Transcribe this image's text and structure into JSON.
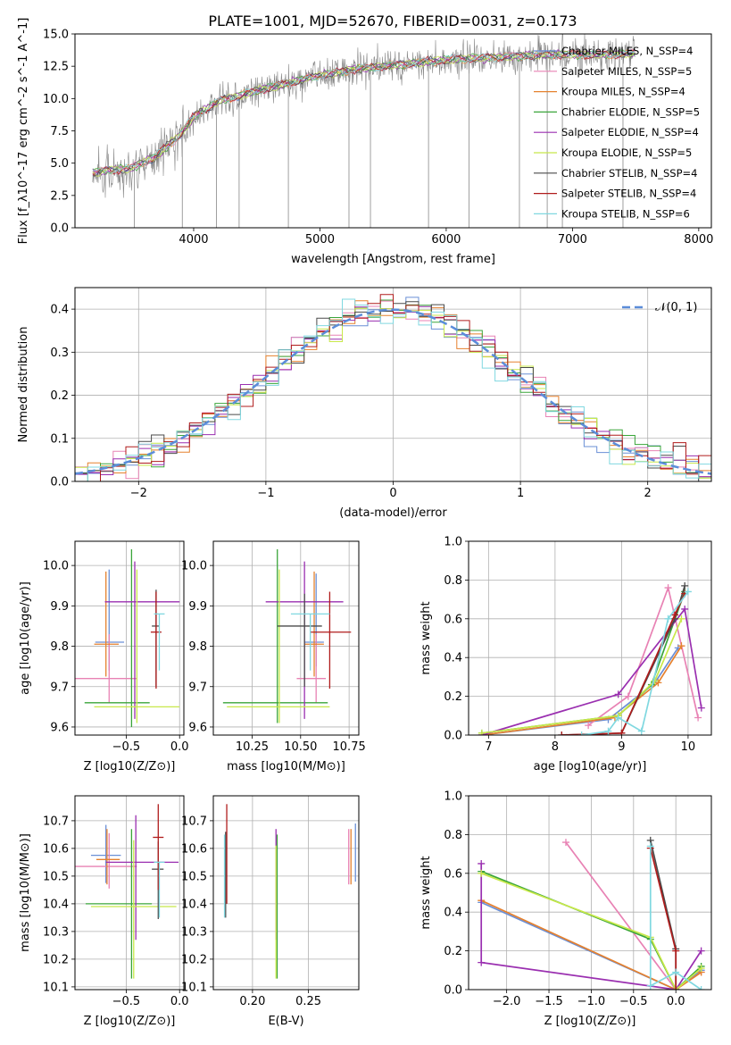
{
  "figure": {
    "title": "PLATE=1001, MJD=52670, FIBERID=0031, z=0.173"
  },
  "models": [
    {
      "name": "Chabrier MILES, N$_{SSP}$=4",
      "color": "#6a8fd6"
    },
    {
      "name": "Salpeter MILES, N$_{SSP}$=5",
      "color": "#e882b4"
    },
    {
      "name": "Kroupa MILES, N$_{SSP}$=4",
      "color": "#e5812e"
    },
    {
      "name": "Chabrier ELODIE, N$_{SSP}$=5",
      "color": "#3aa53a"
    },
    {
      "name": "Salpeter ELODIE, N$_{SSP}$=4",
      "color": "#9a2fb0"
    },
    {
      "name": "Kroupa ELODIE, N$_{SSP}$=5",
      "color": "#c8e84a"
    },
    {
      "name": "Chabrier STELIB, N$_{SSP}$=4",
      "color": "#4a4a4a"
    },
    {
      "name": "Salpeter STELIB, N$_{SSP}$=4",
      "color": "#b01c1c"
    },
    {
      "name": "Kroupa STELIB, N$_{SSP}$=6",
      "color": "#80d8e0"
    }
  ],
  "chart_data": [
    {
      "id": "spectrum",
      "type": "line",
      "xlabel": "wavelength [Angstrom, rest frame]",
      "ylabel": "Flux [f_λ10^-17 erg cm^-2 s^-1 A^-1]",
      "xlim": [
        3060,
        8100
      ],
      "ylim": [
        0,
        15
      ],
      "xticks": [
        4000,
        5000,
        6000,
        7000,
        8000
      ],
      "yticks": [
        0.0,
        2.5,
        5.0,
        7.5,
        10.0,
        12.5,
        15.0
      ],
      "ytick_labels": [
        "0.0",
        "2.5",
        "5.0",
        "7.5",
        "10.0",
        "12.5",
        "15.0"
      ],
      "grid": false,
      "legend": "right",
      "data_color": "#888888",
      "continuum": [
        [
          3200,
          4.3
        ],
        [
          3500,
          4.6
        ],
        [
          3700,
          5.5
        ],
        [
          3900,
          7.3
        ],
        [
          4000,
          8.6
        ],
        [
          4200,
          9.8
        ],
        [
          4500,
          10.6
        ],
        [
          4800,
          11.3
        ],
        [
          5000,
          11.8
        ],
        [
          5300,
          12.3
        ],
        [
          5600,
          12.6
        ],
        [
          6000,
          13.0
        ],
        [
          6400,
          13.2
        ],
        [
          6800,
          13.4
        ],
        [
          7200,
          13.4
        ],
        [
          7500,
          13.5
        ]
      ],
      "x_range": [
        3200,
        7500
      ],
      "spikes": [
        3530,
        3910,
        4180,
        4360,
        4750,
        5230,
        5400,
        5860,
        6180,
        6580,
        6800,
        6920,
        7400
      ]
    },
    {
      "id": "residuals",
      "type": "histogram",
      "xlabel": "(data-model)/error",
      "ylabel": "Normed distribution",
      "xlim": [
        -2.5,
        2.5
      ],
      "ylim": [
        0,
        0.45
      ],
      "xticks": [
        -2,
        -1,
        0,
        1,
        2
      ],
      "xtick_labels": [
        "−2",
        "−1",
        "0",
        "1",
        "2"
      ],
      "yticks": [
        0.0,
        0.1,
        0.2,
        0.3,
        0.4
      ],
      "ytick_labels": [
        "0.0",
        "0.1",
        "0.2",
        "0.3",
        "0.4"
      ],
      "grid": true,
      "legend": "top-right",
      "bins": 50,
      "reference_label": "𝒩(0, 1)",
      "reference_color": "#5b8dd9"
    },
    {
      "id": "age_vs_Z",
      "type": "errorbar",
      "xlabel": "Z [log10(Z/Z⊙)]",
      "ylabel": "age [log10(age/yr)]",
      "xlim": [
        -0.98,
        0.04
      ],
      "ylim": [
        9.58,
        10.06
      ],
      "xticks": [
        -0.5,
        0.0
      ],
      "xtick_labels": [
        "−0.5",
        "0.0"
      ],
      "yticks": [
        9.6,
        9.7,
        9.8,
        9.9,
        10.0
      ],
      "ytick_labels": [
        "9.6",
        "9.7",
        "9.8",
        "9.9",
        "10.0"
      ],
      "grid": true,
      "points": [
        {
          "x": -0.66,
          "xerr": [
            0.13,
            0.14
          ],
          "y": 9.81,
          "yerr": [
            0.07,
            0.18
          ]
        },
        {
          "x": -0.66,
          "xerr": [
            0.33,
            0.26
          ],
          "y": 9.72,
          "yerr": [
            0.06,
            0.11
          ]
        },
        {
          "x": -0.69,
          "xerr": [
            0.11,
            0.12
          ],
          "y": 9.805,
          "yerr": [
            0.08,
            0.18
          ]
        },
        {
          "x": -0.45,
          "xerr": [
            0.44,
            0.17
          ],
          "y": 9.66,
          "yerr": [
            0.06,
            0.38
          ]
        },
        {
          "x": -0.42,
          "xerr": [
            0.28,
            0.42
          ],
          "y": 9.91,
          "yerr": [
            0.29,
            0.1
          ]
        },
        {
          "x": -0.4,
          "xerr": [
            0.4,
            0.4
          ],
          "y": 9.65,
          "yerr": [
            0.04,
            0.34
          ]
        },
        {
          "x": -0.22,
          "xerr": [
            0.04,
            0.03
          ],
          "y": 9.85,
          "yerr": [
            0.15,
            0.09
          ]
        },
        {
          "x": -0.22,
          "xerr": [
            0.05,
            0.05
          ],
          "y": 9.835,
          "yerr": [
            0.14,
            0.1
          ]
        },
        {
          "x": -0.19,
          "xerr": [
            0.05,
            0.05
          ],
          "y": 9.88,
          "yerr": [
            0.14,
            0.0
          ]
        }
      ]
    },
    {
      "id": "age_vs_mass",
      "type": "errorbar",
      "xlabel": "mass [log10(M/M⊙)]",
      "ylabel": "",
      "xlim": [
        10.05,
        10.8
      ],
      "ylim": [
        9.58,
        10.06
      ],
      "xticks": [
        10.25,
        10.5,
        10.75
      ],
      "xtick_labels": [
        "10.25",
        "10.50",
        "10.75"
      ],
      "yticks": [
        9.6,
        9.7,
        9.8,
        9.9,
        10.0
      ],
      "ytick_labels": [
        "9.6",
        "9.7",
        "9.8",
        "9.9",
        "10.0"
      ],
      "grid": true,
      "points": [
        {
          "x": 10.58,
          "xerr": [
            0.06,
            0.04
          ],
          "y": 9.81,
          "yerr": [
            0.06,
            0.17
          ]
        },
        {
          "x": 10.58,
          "xerr": [
            0.1,
            0.05
          ],
          "y": 9.72,
          "yerr": [
            0.06,
            0.11
          ]
        },
        {
          "x": 10.57,
          "xerr": [
            0.05,
            0.05
          ],
          "y": 9.805,
          "yerr": [
            0.08,
            0.18
          ]
        },
        {
          "x": 10.38,
          "xerr": [
            0.28,
            0.26
          ],
          "y": 9.66,
          "yerr": [
            0.05,
            0.38
          ]
        },
        {
          "x": 10.52,
          "xerr": [
            0.2,
            0.2
          ],
          "y": 9.91,
          "yerr": [
            0.29,
            0.1
          ]
        },
        {
          "x": 10.39,
          "xerr": [
            0.27,
            0.26
          ],
          "y": 9.65,
          "yerr": [
            0.04,
            0.34
          ]
        },
        {
          "x": 10.52,
          "xerr": [
            0.14,
            0.09
          ],
          "y": 9.85,
          "yerr": [
            0.15,
            0.08
          ]
        },
        {
          "x": 10.65,
          "xerr": [
            0.1,
            0.11
          ],
          "y": 9.835,
          "yerr": [
            0.14,
            0.1
          ]
        },
        {
          "x": 10.55,
          "xerr": [
            0.1,
            0.1
          ],
          "y": 9.88,
          "yerr": [
            0.14,
            0.0
          ]
        }
      ]
    },
    {
      "id": "weight_vs_age",
      "type": "line",
      "xlabel": "age [log10(age/yr)]",
      "ylabel": "mass weight",
      "xlim": [
        6.7,
        10.35
      ],
      "ylim": [
        0,
        1
      ],
      "xticks": [
        7,
        8,
        9,
        10
      ],
      "xtick_labels": [
        "7",
        "8",
        "9",
        "10"
      ],
      "yticks": [
        0.0,
        0.2,
        0.4,
        0.6,
        0.8,
        1.0
      ],
      "ytick_labels": [
        "0.0",
        "0.2",
        "0.4",
        "0.6",
        "0.8",
        "1.0"
      ],
      "grid": true,
      "series": [
        {
          "x": [
            6.9,
            8.8,
            9.5,
            9.85
          ],
          "y": [
            0.0,
            0.08,
            0.27,
            0.45
          ]
        },
        {
          "x": [
            8.5,
            9.1,
            9.7,
            10.15
          ],
          "y": [
            0.05,
            0.2,
            0.76,
            0.09
          ]
        },
        {
          "x": [
            6.9,
            8.9,
            9.55,
            9.9
          ],
          "y": [
            0.0,
            0.09,
            0.27,
            0.46
          ]
        },
        {
          "x": [
            6.9,
            8.95,
            9.45,
            9.95
          ],
          "y": [
            0.01,
            0.1,
            0.26,
            0.74
          ]
        },
        {
          "x": [
            6.9,
            8.95,
            9.95,
            10.2
          ],
          "y": [
            0.0,
            0.21,
            0.65,
            0.14
          ]
        },
        {
          "x": [
            6.9,
            8.95,
            9.5,
            9.9
          ],
          "y": [
            0.01,
            0.1,
            0.28,
            0.6
          ]
        },
        {
          "x": [
            8.1,
            9.0,
            9.8,
            9.95
          ],
          "y": [
            0.0,
            0.01,
            0.6,
            0.77
          ]
        },
        {
          "x": [
            8.1,
            9.0,
            9.8,
            9.95
          ],
          "y": [
            0.0,
            0.01,
            0.62,
            0.73
          ]
        },
        {
          "x": [
            8.4,
            8.8,
            8.95,
            9.3,
            9.7,
            10.0
          ],
          "y": [
            0.0,
            0.02,
            0.09,
            0.02,
            0.6,
            0.74
          ]
        }
      ]
    },
    {
      "id": "mass_vs_Z",
      "type": "errorbar",
      "xlabel": "Z [log10(Z/Z⊙)]",
      "ylabel": "mass [log10(M/M⊙)]",
      "xlim": [
        -0.98,
        0.04
      ],
      "ylim": [
        10.09,
        10.79
      ],
      "xticks": [
        -0.5,
        0.0
      ],
      "xtick_labels": [
        "−0.5",
        "0.0"
      ],
      "yticks": [
        10.1,
        10.2,
        10.3,
        10.4,
        10.5,
        10.6,
        10.7
      ],
      "ytick_labels": [
        "10.1",
        "10.2",
        "10.3",
        "10.4",
        "10.5",
        "10.6",
        "10.7"
      ],
      "grid": true,
      "points": [
        {
          "x": -0.69,
          "xerr": [
            0.14,
            0.14
          ],
          "y": 10.575,
          "yerr": [
            0.1,
            0.11
          ]
        },
        {
          "x": -0.66,
          "xerr": [
            0.33,
            0.26
          ],
          "y": 10.535,
          "yerr": [
            0.08,
            0.12
          ]
        },
        {
          "x": -0.68,
          "xerr": [
            0.1,
            0.12
          ],
          "y": 10.56,
          "yerr": [
            0.09,
            0.11
          ]
        },
        {
          "x": -0.45,
          "xerr": [
            0.43,
            0.19
          ],
          "y": 10.4,
          "yerr": [
            0.27,
            0.27
          ]
        },
        {
          "x": -0.41,
          "xerr": [
            0.28,
            0.4
          ],
          "y": 10.55,
          "yerr": [
            0.28,
            0.17
          ]
        },
        {
          "x": -0.43,
          "xerr": [
            0.4,
            0.4
          ],
          "y": 10.39,
          "yerr": [
            0.26,
            0.24
          ]
        },
        {
          "x": -0.2,
          "xerr": [
            0.06,
            0.05
          ],
          "y": 10.525,
          "yerr": [
            0.18,
            0.1
          ]
        },
        {
          "x": -0.2,
          "xerr": [
            0.05,
            0.05
          ],
          "y": 10.64,
          "yerr": [
            0.19,
            0.12
          ]
        },
        {
          "x": -0.19,
          "xerr": [
            0.05,
            0.05
          ],
          "y": 10.55,
          "yerr": [
            0.2,
            0.0
          ]
        }
      ]
    },
    {
      "id": "mass_vs_EBV",
      "type": "errorbar",
      "xlabel": "E(B-V)",
      "ylabel": "",
      "xlim": [
        0.165,
        0.295
      ],
      "ylim": [
        10.09,
        10.79
      ],
      "xticks": [
        0.2,
        0.25
      ],
      "xtick_labels": [
        "0.20",
        "0.25"
      ],
      "yticks": [
        10.1,
        10.2,
        10.3,
        10.4,
        10.5,
        10.6,
        10.7
      ],
      "ytick_labels": [
        "10.1",
        "10.2",
        "10.3",
        "10.4",
        "10.5",
        "10.6",
        "10.7"
      ],
      "grid": true,
      "points": [
        {
          "x": 0.292,
          "xerr": [
            0,
            0
          ],
          "y": 10.58,
          "yerr": [
            0.1,
            0.11
          ]
        },
        {
          "x": 0.286,
          "xerr": [
            0,
            0
          ],
          "y": 10.56,
          "yerr": [
            0.09,
            0.11
          ]
        },
        {
          "x": 0.288,
          "xerr": [
            0,
            0
          ],
          "y": 10.57,
          "yerr": [
            0.1,
            0.1
          ]
        },
        {
          "x": 0.222,
          "xerr": [
            0,
            0
          ],
          "y": 10.4,
          "yerr": [
            0.27,
            0.25
          ]
        },
        {
          "x": 0.221,
          "xerr": [
            0,
            0
          ],
          "y": 10.55,
          "yerr": [
            0.28,
            0.12
          ]
        },
        {
          "x": 0.221,
          "xerr": [
            0,
            0
          ],
          "y": 10.39,
          "yerr": [
            0.26,
            0.22
          ]
        },
        {
          "x": 0.176,
          "xerr": [
            0,
            0
          ],
          "y": 10.5,
          "yerr": [
            0.15,
            0.16
          ]
        },
        {
          "x": 0.177,
          "xerr": [
            0,
            0
          ],
          "y": 10.6,
          "yerr": [
            0.2,
            0.16
          ]
        },
        {
          "x": 0.175,
          "xerr": [
            0,
            0
          ],
          "y": 10.55,
          "yerr": [
            0.2,
            0.1
          ]
        }
      ]
    },
    {
      "id": "weight_vs_Z",
      "type": "line",
      "xlabel": "Z [log10(Z/Z⊙)]",
      "ylabel": "mass weight",
      "xlim": [
        -2.45,
        0.42
      ],
      "ylim": [
        0,
        1
      ],
      "xticks": [
        -2.0,
        -1.5,
        -1.0,
        -0.5,
        0.0
      ],
      "xtick_labels": [
        "−2.0",
        "−1.5",
        "−1.0",
        "−0.5",
        "0.0"
      ],
      "yticks": [
        0.0,
        0.2,
        0.4,
        0.6,
        0.8,
        1.0
      ],
      "ytick_labels": [
        "0.0",
        "0.2",
        "0.4",
        "0.6",
        "0.8",
        "1.0"
      ],
      "grid": true,
      "series": [
        {
          "x": [
            -2.3,
            0.0,
            0.3
          ],
          "y": [
            0.45,
            0.0,
            0.1
          ]
        },
        {
          "x": [
            -1.3,
            0.0,
            0.3
          ],
          "y": [
            0.76,
            0.0,
            0.09
          ]
        },
        {
          "x": [
            -2.3,
            0.0,
            0.3
          ],
          "y": [
            0.46,
            0.0,
            0.09
          ]
        },
        {
          "x": [
            -2.3,
            -0.3,
            0.0,
            0.3
          ],
          "y": [
            0.61,
            0.26,
            0.0,
            0.12
          ]
        },
        {
          "x": [
            -2.3,
            -2.3,
            0.0,
            0.3
          ],
          "y": [
            0.65,
            0.14,
            0.0,
            0.2
          ]
        },
        {
          "x": [
            -2.3,
            -0.3,
            0.0,
            0.3
          ],
          "y": [
            0.6,
            0.27,
            0.0,
            0.11
          ]
        },
        {
          "x": [
            -0.3,
            0.0,
            0.0
          ],
          "y": [
            0.77,
            0.21,
            0.0
          ]
        },
        {
          "x": [
            -0.3,
            0.0,
            0.0
          ],
          "y": [
            0.73,
            0.2,
            0.0
          ]
        },
        {
          "x": [
            -0.3,
            -0.3,
            0.0,
            0.3
          ],
          "y": [
            0.74,
            0.02,
            0.09,
            0.0
          ]
        }
      ]
    }
  ]
}
